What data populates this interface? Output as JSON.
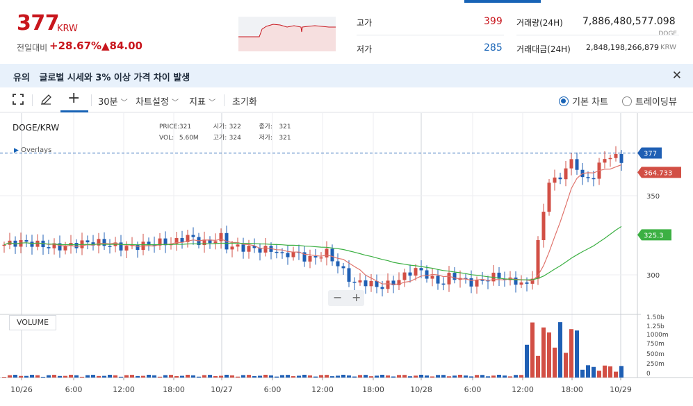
{
  "header": {
    "price": "377",
    "unit": "KRW",
    "change_label": "전일대비",
    "change_pct": "+28.67%",
    "change_amt": "▲84.00",
    "high_label": "고가",
    "high_value": "399",
    "low_label": "저가",
    "low_value": "285",
    "volume_label": "거래량(24H)",
    "volume_value": "7,886,480,577.098",
    "volume_unit": "DOGE",
    "amount_label": "거래대금(24H)",
    "amount_value": "2,848,198,266,879",
    "amount_unit": "KRW"
  },
  "alert": {
    "prefix": "유의",
    "message": "글로벌 시세와 3% 이상 가격 차이 발생"
  },
  "toolbar": {
    "interval": "30분",
    "settings": "차트설정",
    "indicators": "지표",
    "reset": "초기화",
    "basic_chart": "기본 차트",
    "tradingview": "트레이딩뷰"
  },
  "chart": {
    "pair": "DOGE/KRW",
    "overlays": "Overlays",
    "ohlc": {
      "price_label": "PRICE:",
      "price": "321",
      "open_label": "시가:",
      "open": "322",
      "close_label": "종가:",
      "close": "321",
      "vol_label": "VOL:",
      "vol": "5.60M",
      "high_label": "고가:",
      "high": "324",
      "low_label": "저가:",
      "low": "321"
    },
    "volume_label": "VOLUME",
    "price_badge": "377",
    "ma_short_badge": "364.733",
    "ma_long_badge": "325.3",
    "zoom_minus": "−",
    "zoom_plus": "+"
  },
  "chart_data": {
    "type": "candlestick",
    "x_ticks": [
      "10/26",
      "6:00",
      "12:00",
      "18:00",
      "10/27",
      "6:00",
      "12:00",
      "18:00",
      "10/28",
      "6:00",
      "12:00",
      "18:00",
      "10/29"
    ],
    "y_ticks": [
      350,
      300
    ],
    "volume_ticks": [
      "1.50b",
      "1.25b",
      "1000m",
      "750m",
      "500m",
      "250m",
      "0"
    ],
    "last_price": 377,
    "ma_short_last": 364.733,
    "ma_long_last": 325.3,
    "up_color": "#d24f45",
    "down_color": "#1f5fb4",
    "ma_short_color": "#e0736b",
    "ma_long_color": "#3cb043"
  },
  "colors": {
    "accent": "#1763b6",
    "up": "#c8161d",
    "down": "#1763b6"
  }
}
